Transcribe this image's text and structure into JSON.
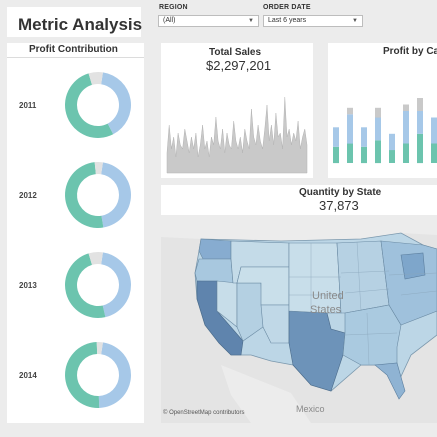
{
  "header": {
    "title": "Metric Analysis"
  },
  "filters": {
    "region": {
      "label": "REGION",
      "value": "(All)"
    },
    "order_date": {
      "label": "ORDER DATE",
      "value": "Last 6 years"
    }
  },
  "profit_contribution": {
    "title": "Profit Contribution",
    "colors": {
      "segment1": "#a6c8e8",
      "segment2": "#6cc4ae",
      "segment3": "#e2e2e2"
    },
    "years": [
      {
        "year": "2011",
        "segments": [
          0.4,
          0.53,
          0.07
        ]
      },
      {
        "year": "2012",
        "segments": [
          0.45,
          0.51,
          0.04
        ]
      },
      {
        "year": "2013",
        "segments": [
          0.44,
          0.49,
          0.07
        ]
      },
      {
        "year": "2014",
        "segments": [
          0.47,
          0.5,
          0.03
        ]
      }
    ]
  },
  "total_sales": {
    "title": "Total Sales",
    "value": "$2,297,201"
  },
  "profit_by_category": {
    "title": "Profit by Ca"
  },
  "quantity_by_state": {
    "title": "Quantity by State",
    "value": "37,873"
  },
  "map": {
    "attribution": "© OpenStreetMap contributors",
    "labels": {
      "united": "United",
      "states": "States",
      "mexico": "Mexico"
    }
  },
  "chart_data": [
    {
      "type": "area",
      "title": "Total Sales",
      "values": [
        0.25,
        0.6,
        0.3,
        0.45,
        0.2,
        0.5,
        0.35,
        0.3,
        0.55,
        0.4,
        0.25,
        0.45,
        0.3,
        0.5,
        0.2,
        0.35,
        0.6,
        0.3,
        0.4,
        0.2,
        0.45,
        0.35,
        0.7,
        0.4,
        0.3,
        0.55,
        0.25,
        0.5,
        0.35,
        0.3,
        0.65,
        0.4,
        0.3,
        0.45,
        0.25,
        0.55,
        0.4,
        0.3,
        0.8,
        0.45,
        0.35,
        0.6,
        0.4,
        0.3,
        0.55,
        0.85,
        0.4,
        0.6,
        0.35,
        0.75,
        0.45,
        0.5,
        0.3,
        0.95,
        0.45,
        0.55,
        0.35,
        0.5,
        0.4,
        0.65,
        0.3,
        0.45,
        0.55,
        0.35
      ],
      "color": "#c9c9c9"
    },
    {
      "type": "bar",
      "title": "Profit by Ca",
      "stacked": true,
      "series": [
        {
          "name": "",
          "color": "#6cc4ae",
          "values": [
            0.25,
            0.3,
            0.25,
            0.35,
            0.2,
            0.3,
            0.45,
            0.3
          ]
        },
        {
          "name": "",
          "color": "#a6c8e8",
          "values": [
            0.3,
            0.45,
            0.3,
            0.35,
            0.25,
            0.5,
            0.35,
            0.4
          ]
        },
        {
          "name": "",
          "color": "#c9c9c9",
          "values": [
            0.0,
            0.1,
            0.0,
            0.15,
            0.0,
            0.1,
            0.2,
            0.0
          ]
        }
      ]
    }
  ]
}
